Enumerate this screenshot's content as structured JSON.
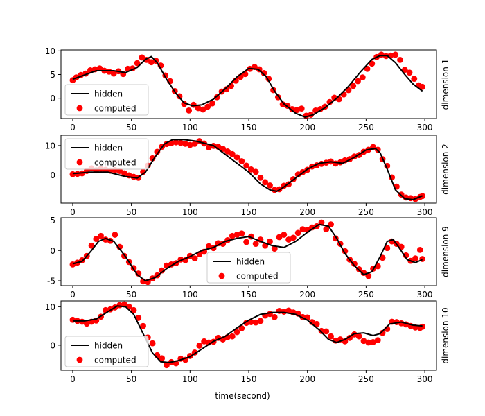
{
  "figure": {
    "xlabel": "time(second)"
  },
  "chart_data": [
    {
      "type": "line",
      "ylabel": "dimension 1",
      "xlim": [
        -10,
        310
      ],
      "ylim": [
        -4.3,
        10.2
      ],
      "xticks": [
        0,
        50,
        100,
        150,
        200,
        250,
        300
      ],
      "yticks": [
        0,
        5,
        10
      ],
      "legend": "bottom-left",
      "series": [
        {
          "name": "hidden",
          "kind": "line",
          "color": "#000000",
          "x": [
            0,
            20,
            35,
            45,
            55,
            62,
            67,
            72,
            80,
            88,
            95,
            102,
            110,
            120,
            130,
            140,
            150,
            158,
            165,
            172,
            180,
            190,
            198,
            205,
            215,
            225,
            235,
            245,
            255,
            262,
            268,
            275,
            283,
            290,
            298
          ],
          "y": [
            4,
            5.8,
            5.8,
            5.4,
            6.5,
            8.2,
            8.8,
            7.5,
            4,
            1,
            -1,
            -1.6,
            -1.4,
            -0.2,
            2,
            4.5,
            6.3,
            6.1,
            4.5,
            1.5,
            -1.2,
            -3.2,
            -4,
            -3.5,
            -2,
            0,
            2.5,
            5.5,
            8.2,
            9,
            9,
            7.5,
            5,
            3,
            1.5
          ]
        },
        {
          "name": "computed",
          "kind": "scatter",
          "color": "#ff0000",
          "x": [
            0,
            3,
            7,
            11,
            15,
            19,
            23,
            27,
            31,
            35,
            39,
            43,
            47,
            51,
            55,
            59,
            63,
            67,
            71,
            75,
            79,
            83,
            87,
            91,
            95,
            99,
            103,
            107,
            111,
            115,
            119,
            123,
            127,
            131,
            135,
            139,
            143,
            147,
            151,
            155,
            159,
            163,
            167,
            171,
            175,
            179,
            183,
            187,
            191,
            195,
            199,
            203,
            207,
            211,
            215,
            219,
            223,
            227,
            231,
            235,
            239,
            243,
            247,
            251,
            255,
            259,
            263,
            267,
            271,
            275,
            279,
            283,
            287,
            291,
            295,
            298
          ],
          "y": [
            3.8,
            4.4,
            4.9,
            5.2,
            5.9,
            6.1,
            6.3,
            5.8,
            5.6,
            5.2,
            5.7,
            5.1,
            6.2,
            6.3,
            7.4,
            8.6,
            8.1,
            7.6,
            7.9,
            6.9,
            4.8,
            3.6,
            1.5,
            0.4,
            -1.2,
            -2.6,
            -1.4,
            -2.1,
            -2.4,
            -1.8,
            -1.1,
            0.2,
            1.4,
            1.9,
            2.6,
            3.7,
            4.5,
            5.1,
            6.2,
            6.6,
            6.1,
            5.3,
            4.1,
            1.7,
            0.2,
            -1.3,
            -1.6,
            -2.3,
            -2.5,
            -2.2,
            -3.7,
            -3.5,
            -2.6,
            -2.3,
            -1.8,
            -0.8,
            0.1,
            -0.2,
            0.8,
            1.7,
            2.6,
            3.6,
            4.4,
            6.2,
            7.3,
            8.7,
            9.2,
            8.9,
            9.0,
            9.2,
            8.1,
            6.0,
            5.4,
            4.1,
            2.7,
            2.4
          ]
        }
      ]
    },
    {
      "type": "line",
      "ylabel": "dimension 2",
      "xlim": [
        -10,
        310
      ],
      "ylim": [
        -9.5,
        13.5
      ],
      "xticks": [
        0,
        50,
        100,
        150,
        200,
        250,
        300
      ],
      "yticks": [
        0,
        10
      ],
      "legend": "top-left",
      "series": [
        {
          "name": "hidden",
          "kind": "line",
          "color": "#000000",
          "x": [
            0,
            15,
            30,
            45,
            55,
            62,
            70,
            78,
            85,
            95,
            105,
            120,
            130,
            140,
            150,
            160,
            168,
            174,
            180,
            190,
            200,
            210,
            220,
            230,
            240,
            250,
            258,
            262,
            268,
            275,
            283,
            290,
            298
          ],
          "y": [
            0.5,
            1,
            1,
            -0.5,
            -1,
            1,
            6,
            10.5,
            12,
            12,
            11.5,
            10,
            7,
            4,
            1,
            -3,
            -5,
            -5.5,
            -4,
            -1,
            2,
            4,
            4.5,
            4,
            6,
            8.5,
            9,
            7.5,
            2,
            -5,
            -8,
            -8.3,
            -7
          ]
        },
        {
          "name": "computed",
          "kind": "scatter",
          "color": "#ff0000",
          "x": [
            0,
            4,
            8,
            12,
            16,
            20,
            24,
            28,
            32,
            36,
            40,
            44,
            48,
            52,
            56,
            60,
            64,
            68,
            72,
            76,
            80,
            84,
            88,
            92,
            96,
            100,
            104,
            108,
            112,
            116,
            120,
            124,
            128,
            132,
            136,
            140,
            144,
            148,
            152,
            156,
            160,
            164,
            168,
            172,
            176,
            180,
            184,
            188,
            192,
            196,
            200,
            204,
            208,
            212,
            216,
            220,
            224,
            228,
            232,
            236,
            240,
            244,
            248,
            252,
            256,
            260,
            264,
            268,
            272,
            276,
            280,
            284,
            288,
            292,
            296,
            298
          ],
          "y": [
            0.3,
            0.4,
            0.6,
            1.4,
            2.3,
            1.6,
            2.1,
            1.8,
            1.5,
            1.7,
            1.4,
            0.6,
            -0.1,
            -0.6,
            -0.9,
            1.1,
            3.2,
            5.7,
            7.9,
            9.6,
            10.5,
            10.8,
            11.1,
            10.9,
            10.6,
            10.2,
            10.6,
            11.5,
            10.7,
            9.4,
            9.9,
            9.6,
            8.9,
            8.0,
            7.1,
            6.0,
            4.7,
            3.2,
            1.9,
            1.1,
            -0.9,
            -2.4,
            -3.5,
            -5.0,
            -4.8,
            -3.6,
            -3.1,
            -1.4,
            0.2,
            1.0,
            1.8,
            2.9,
            3.3,
            3.8,
            4.2,
            4.6,
            3.9,
            4.3,
            5.0,
            5.4,
            6.3,
            6.8,
            7.9,
            8.6,
            9.5,
            8.6,
            5.4,
            3.1,
            -0.8,
            -3.9,
            -6.6,
            -7.6,
            -7.8,
            -8.1,
            -7.4,
            -7.1
          ]
        }
      ]
    },
    {
      "type": "line",
      "ylabel": "dimension 9",
      "xlim": [
        -10,
        310
      ],
      "ylim": [
        -5.8,
        5.4
      ],
      "xticks": [
        0,
        50,
        100,
        150,
        200,
        250,
        300
      ],
      "yticks": [
        -5,
        0,
        5
      ],
      "legend": "bottom-center",
      "series": [
        {
          "name": "hidden",
          "kind": "line",
          "color": "#000000",
          "x": [
            0,
            8,
            16,
            22,
            28,
            35,
            45,
            55,
            62,
            70,
            80,
            90,
            100,
            110,
            120,
            130,
            140,
            150,
            160,
            170,
            180,
            190,
            200,
            210,
            218,
            225,
            232,
            240,
            248,
            255,
            262,
            268,
            273,
            278,
            285,
            292,
            298
          ],
          "y": [
            -2.2,
            -1.8,
            0,
            1.5,
            2,
            1.5,
            -1,
            -4,
            -5,
            -4.5,
            -3,
            -1.8,
            -1,
            0,
            0.5,
            1.5,
            2,
            2.3,
            1.5,
            0.8,
            0.5,
            1.5,
            3,
            4.3,
            4,
            2,
            -0.5,
            -2.5,
            -4,
            -3.5,
            -1,
            1.5,
            1.8,
            0.5,
            -1.5,
            -2,
            -1.5
          ]
        },
        {
          "name": "computed",
          "kind": "scatter",
          "color": "#ff0000",
          "x": [
            0,
            4,
            8,
            12,
            16,
            20,
            24,
            28,
            32,
            36,
            40,
            44,
            48,
            52,
            56,
            60,
            64,
            68,
            72,
            76,
            80,
            84,
            88,
            92,
            96,
            100,
            104,
            108,
            112,
            116,
            120,
            124,
            128,
            132,
            136,
            140,
            144,
            148,
            152,
            156,
            160,
            164,
            168,
            172,
            176,
            180,
            184,
            188,
            192,
            196,
            200,
            204,
            208,
            212,
            216,
            220,
            224,
            228,
            232,
            236,
            240,
            244,
            248,
            252,
            256,
            260,
            264,
            268,
            272,
            276,
            280,
            284,
            288,
            292,
            296,
            298
          ],
          "y": [
            -2.3,
            -2.0,
            -1.6,
            -0.9,
            0.8,
            1.9,
            2.4,
            1.8,
            1.6,
            2.6,
            0.6,
            -0.9,
            -1.9,
            -2.9,
            -3.8,
            -5.1,
            -5.2,
            -4.6,
            -4.1,
            -3.3,
            -2.5,
            -2.3,
            -2.1,
            -1.5,
            -1.6,
            -0.9,
            -1.3,
            -0.6,
            -0.2,
            0.7,
            0.4,
            1.2,
            1.1,
            1.7,
            2.4,
            2.6,
            2.8,
            1.4,
            2.3,
            1.1,
            1.8,
            0.8,
            1.5,
            0.3,
            2.2,
            2.6,
            1.8,
            2.1,
            2.9,
            3.5,
            3.4,
            3.8,
            4.0,
            4.6,
            3.5,
            4.3,
            2.0,
            1.1,
            -0.1,
            -1.5,
            -2.2,
            -3.1,
            -3.7,
            -4.2,
            -3.0,
            -2.6,
            -1.2,
            0.4,
            1.5,
            1.1,
            0.6,
            -0.8,
            -1.7,
            -1.3,
            0.1,
            -1.4
          ]
        }
      ]
    },
    {
      "type": "line",
      "ylabel": "dimension 10",
      "xlim": [
        -10,
        310
      ],
      "ylim": [
        -6.5,
        11.5
      ],
      "xticks": [
        0,
        50,
        100,
        150,
        200,
        250,
        300
      ],
      "yticks": [
        0,
        10
      ],
      "legend": "bottom-left",
      "series": [
        {
          "name": "hidden",
          "kind": "line",
          "color": "#000000",
          "x": [
            0,
            10,
            20,
            30,
            38,
            45,
            52,
            60,
            68,
            75,
            82,
            90,
            100,
            110,
            120,
            130,
            140,
            150,
            160,
            170,
            180,
            190,
            200,
            210,
            218,
            225,
            232,
            240,
            248,
            256,
            262,
            270,
            280,
            290,
            298
          ],
          "y": [
            6.3,
            6.3,
            6.8,
            8.7,
            10.2,
            10,
            8,
            3,
            -2,
            -4.3,
            -4.5,
            -4,
            -3,
            -1,
            1,
            2.3,
            4.5,
            6.5,
            8,
            8.5,
            8.5,
            8,
            6.5,
            4,
            1.5,
            0.7,
            1.5,
            3,
            3.2,
            2.5,
            3,
            5.5,
            6,
            5.2,
            5
          ]
        },
        {
          "name": "computed",
          "kind": "scatter",
          "color": "#ff0000",
          "x": [
            0,
            4,
            8,
            12,
            16,
            20,
            24,
            28,
            32,
            36,
            40,
            44,
            48,
            52,
            56,
            60,
            64,
            68,
            72,
            76,
            80,
            84,
            88,
            92,
            96,
            100,
            104,
            108,
            112,
            116,
            120,
            124,
            128,
            132,
            136,
            140,
            144,
            148,
            152,
            156,
            160,
            164,
            168,
            172,
            176,
            180,
            184,
            188,
            192,
            196,
            200,
            204,
            208,
            212,
            216,
            220,
            224,
            228,
            232,
            236,
            240,
            244,
            248,
            252,
            256,
            260,
            264,
            268,
            272,
            276,
            280,
            284,
            288,
            292,
            296,
            298
          ],
          "y": [
            6.6,
            6.3,
            6.1,
            5.6,
            6.1,
            6.4,
            7.4,
            9.1,
            9.3,
            9.8,
            10.4,
            10.6,
            10.0,
            9.1,
            7.1,
            5.0,
            2.0,
            0.5,
            -2.6,
            -3.4,
            -5.2,
            -4.4,
            -4.7,
            -3.5,
            -3.8,
            -2.8,
            -1.9,
            -0.1,
            1.0,
            0.7,
            0.9,
            1.9,
            1.5,
            2.1,
            2.3,
            3.4,
            4.4,
            5.8,
            6.0,
            5.9,
            6.3,
            7.7,
            8.1,
            7.3,
            8.9,
            8.7,
            9.0,
            8.5,
            8.2,
            7.3,
            7.2,
            6.0,
            5.5,
            3.7,
            3.6,
            2.3,
            1.2,
            1.5,
            1.0,
            1.9,
            2.8,
            2.3,
            1.1,
            0.7,
            0.8,
            1.3,
            3.2,
            4.2,
            6.1,
            6.0,
            5.7,
            5.4,
            5.0,
            4.6,
            4.5,
            4.8
          ]
        }
      ]
    }
  ]
}
